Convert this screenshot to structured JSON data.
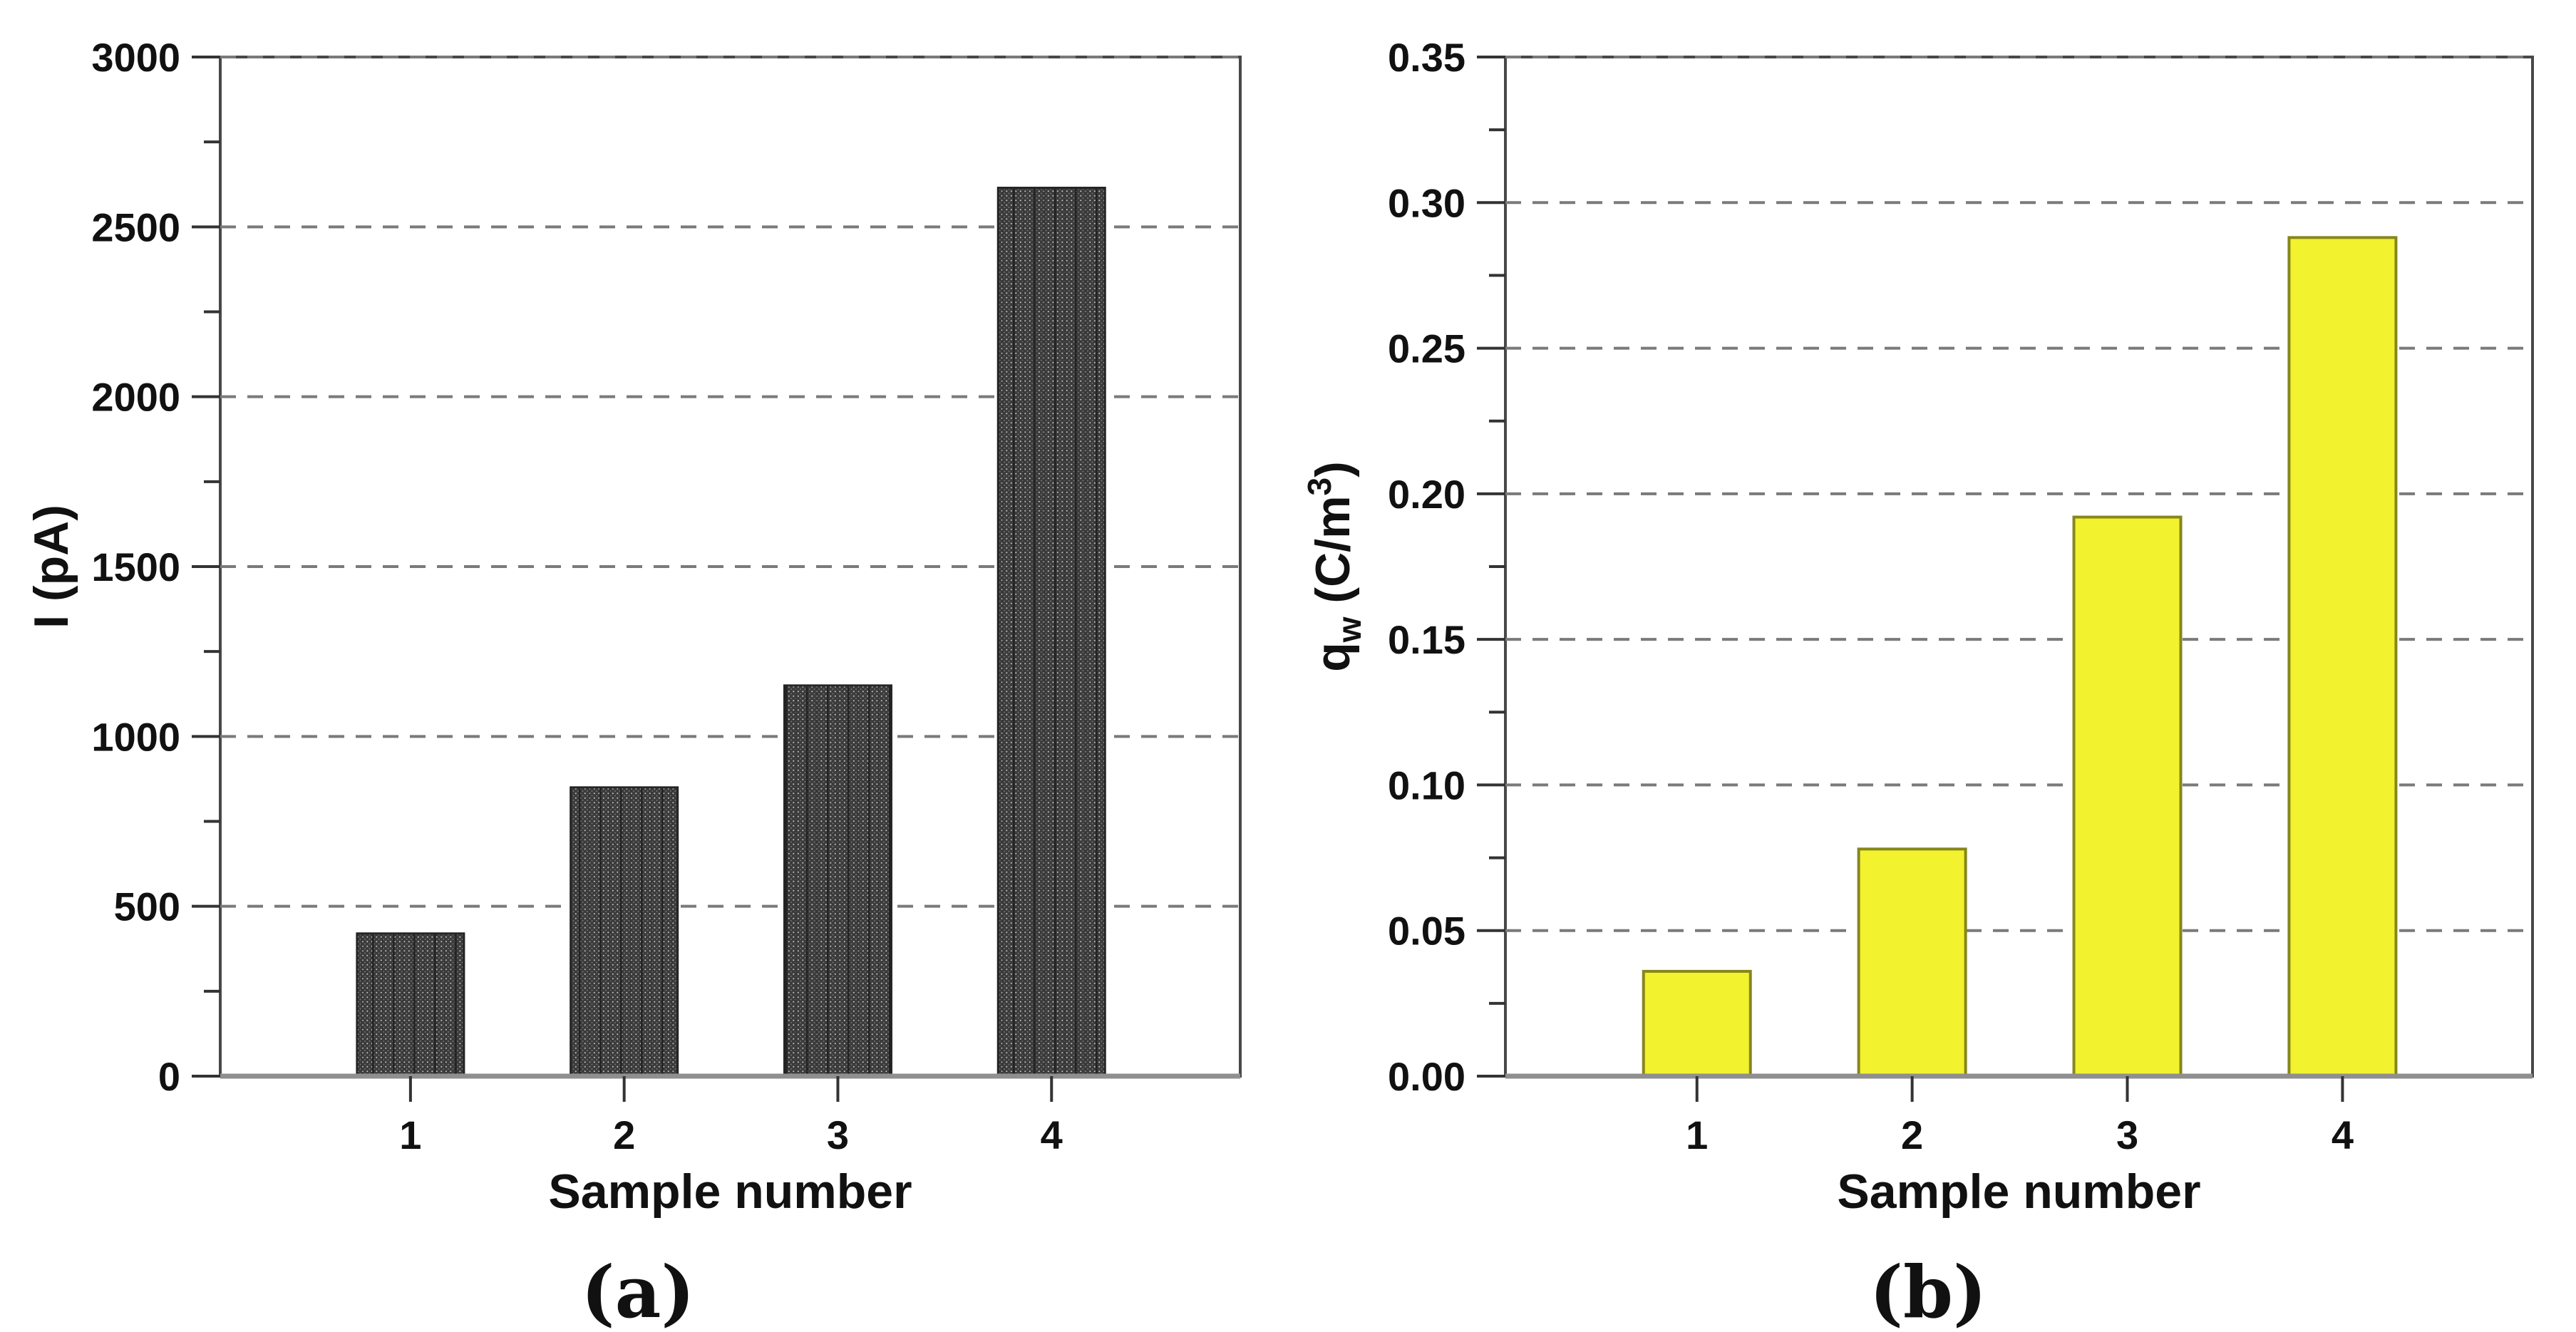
{
  "figure_title": "",
  "colors": {
    "background": "#ffffff",
    "frame": "#484848",
    "grid": "#7a7a7a",
    "tick": "#333333",
    "text": "#111111",
    "baseline": "#8f8f8f",
    "dark_bar_fill": "#3c3c3c",
    "dark_bar_stroke": "#242424",
    "yellow_bar_fill": "#f2f22e",
    "yellow_bar_stroke": "#86861e"
  },
  "chart_data": [
    {
      "type": "bar",
      "panel_label": "(a)",
      "title": "",
      "categories": [
        "1",
        "2",
        "3",
        "4"
      ],
      "values": [
        420,
        850,
        1150,
        2615
      ],
      "xlabel": "Sample number",
      "ylabel": "I (pA)",
      "ylabel_parts": [
        {
          "t": "I (pA)",
          "pos": "base"
        }
      ],
      "ylim": [
        0,
        3000
      ],
      "ytick_step": 500,
      "yminor_step": 250,
      "ytick_labels": [
        "0",
        "500",
        "1000",
        "1500",
        "2000",
        "2500",
        "3000"
      ],
      "grid": "horizontal-dashed",
      "legend": "none",
      "bar_style": {
        "fill": "#3c3c3c",
        "stroke": "#242424",
        "texture": "white-dot-hatch"
      }
    },
    {
      "type": "bar",
      "panel_label": "(b)",
      "title": "",
      "categories": [
        "1",
        "2",
        "3",
        "4"
      ],
      "values": [
        0.036,
        0.078,
        0.192,
        0.288
      ],
      "xlabel": "Sample number",
      "ylabel": "qw (C/m³)",
      "ylabel_parts": [
        {
          "t": "q",
          "pos": "base"
        },
        {
          "t": "w",
          "pos": "sub"
        },
        {
          "t": " (C/m",
          "pos": "base"
        },
        {
          "t": "3",
          "pos": "sup"
        },
        {
          "t": ")",
          "pos": "base"
        }
      ],
      "ylim": [
        0,
        0.35
      ],
      "ytick_step": 0.05,
      "yminor_step": 0.025,
      "ytick_labels": [
        "0.00",
        "0.05",
        "0.10",
        "0.15",
        "0.20",
        "0.25",
        "0.30",
        "0.35"
      ],
      "grid": "horizontal-dashed",
      "legend": "none",
      "bar_style": {
        "fill": "#f2f22e",
        "stroke": "#86861e",
        "texture": "none"
      }
    }
  ]
}
